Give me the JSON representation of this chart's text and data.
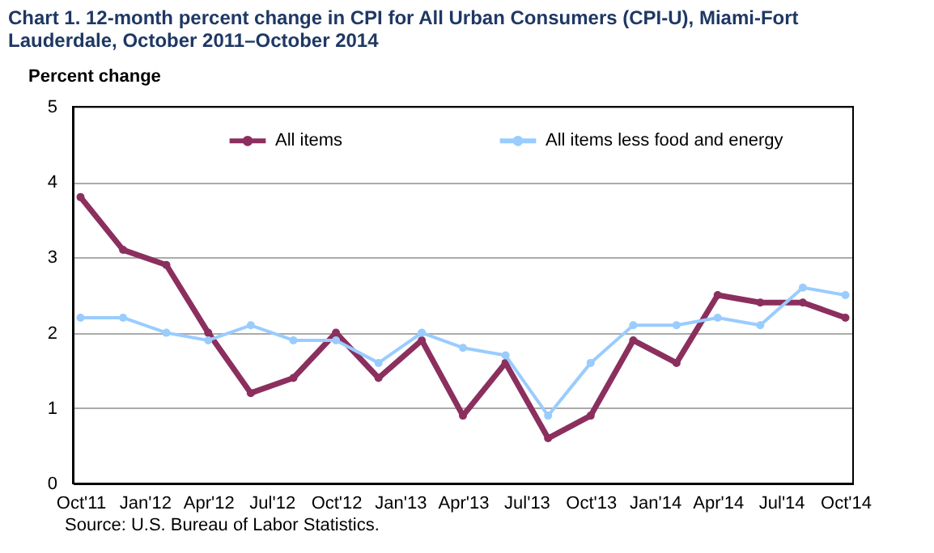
{
  "chart_data": {
    "type": "line",
    "title": "Chart 1. 12-month  percent change in CPI for All Urban Consumers (CPI-U), Miami-Fort Lauderdale, October 2011–October 2014",
    "ylabel": "Percent change",
    "x": [
      "2011-10",
      "2011-12",
      "2012-02",
      "2012-04",
      "2012-06",
      "2012-08",
      "2012-10",
      "2012-12",
      "2013-02",
      "2013-04",
      "2013-06",
      "2013-08",
      "2013-10",
      "2013-12",
      "2014-02",
      "2014-04",
      "2014-06",
      "2014-08",
      "2014-10"
    ],
    "series": [
      {
        "name": "All items",
        "color": "#8b2f5e",
        "values": [
          3.8,
          3.1,
          2.9,
          2.0,
          1.2,
          1.4,
          2.0,
          1.4,
          1.9,
          0.9,
          1.6,
          0.6,
          0.9,
          1.9,
          1.6,
          2.5,
          2.4,
          2.4,
          2.2
        ]
      },
      {
        "name": "All items less food and energy",
        "color": "#99ccff",
        "values": [
          2.2,
          2.2,
          2.0,
          1.9,
          2.1,
          1.9,
          1.9,
          1.6,
          2.0,
          1.8,
          1.7,
          0.9,
          1.6,
          2.1,
          2.1,
          2.2,
          2.1,
          2.6,
          2.5
        ]
      }
    ],
    "xlim": [
      "2011-09-20",
      "2014-10-12"
    ],
    "xticks": [
      {
        "value": "2011-10",
        "label": "Oct'11"
      },
      {
        "value": "2012-01",
        "label": "Jan'12"
      },
      {
        "value": "2012-04",
        "label": "Apr'12"
      },
      {
        "value": "2012-07",
        "label": "Jul'12"
      },
      {
        "value": "2012-10",
        "label": "Oct'12"
      },
      {
        "value": "2013-01",
        "label": "Jan'13"
      },
      {
        "value": "2013-04",
        "label": "Apr'13"
      },
      {
        "value": "2013-07",
        "label": "Jul'13"
      },
      {
        "value": "2013-10",
        "label": "Oct'13"
      },
      {
        "value": "2014-01",
        "label": "Jan'14"
      },
      {
        "value": "2014-04",
        "label": "Apr'14"
      },
      {
        "value": "2014-07",
        "label": "Jul'14"
      },
      {
        "value": "2014-10",
        "label": "Oct'14"
      }
    ],
    "ylim": [
      0,
      5
    ],
    "yticks": [
      0,
      1,
      2,
      3,
      4,
      5
    ],
    "grid": "y",
    "legend": "top",
    "marker": "circle",
    "line_style": "solid",
    "annotations": [
      "Source: U.S. Bureau of Labor Statistics."
    ]
  }
}
